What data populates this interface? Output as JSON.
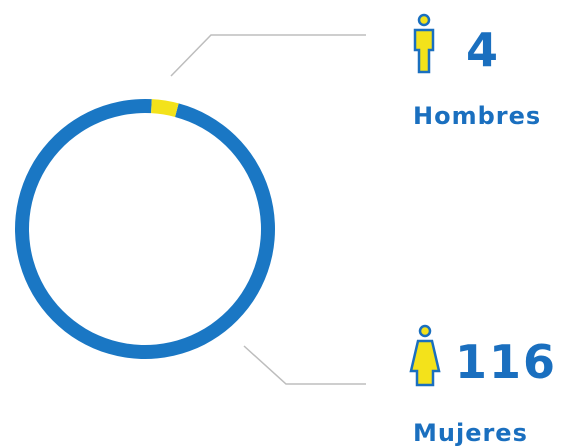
{
  "chart_data": {
    "type": "pie",
    "donut": true,
    "categories": [
      "Hombres",
      "Mujeres"
    ],
    "values": [
      4,
      116
    ],
    "colors": [
      "#f3e21b",
      "#1a77c4"
    ]
  }
}
